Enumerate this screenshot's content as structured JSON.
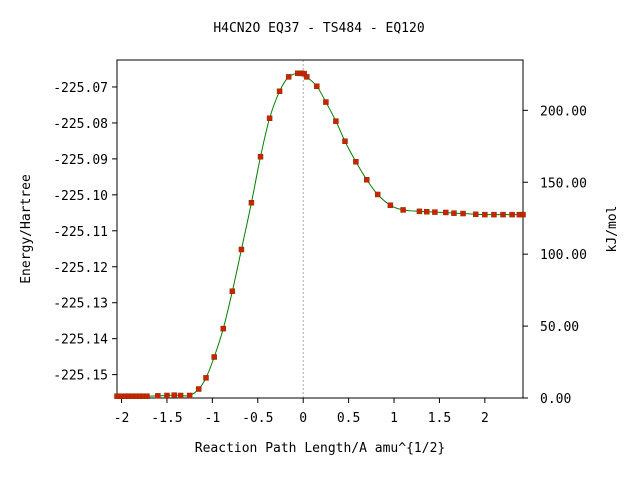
{
  "chart_data": {
    "type": "line",
    "title": "H4CN2O   EQ37 - TS484 - EQ120",
    "xlabel": "Reaction Path Length/A amu^{1/2}",
    "ylabel_left": "Energy/Hartree",
    "ylabel_right": "kJ/mol",
    "xlim": [
      -2.05,
      2.42
    ],
    "ylim_left": [
      -225.1565,
      -225.0625
    ],
    "ylim_right": [
      0,
      235
    ],
    "x_ticks": [
      -2,
      -1.5,
      -1,
      -0.5,
      0,
      0.5,
      1,
      1.5,
      2
    ],
    "x_tick_labels": [
      "-2",
      "-1.5",
      "-1",
      "-0.5",
      "0",
      "0.5",
      "1",
      "1.5",
      "2"
    ],
    "y_left_ticks": [
      -225.07,
      -225.08,
      -225.09,
      -225.1,
      -225.11,
      -225.12,
      -225.13,
      -225.14,
      -225.15
    ],
    "y_left_tick_labels": [
      "-225.07",
      "-225.08",
      "-225.09",
      "-225.10",
      "-225.11",
      "-225.12",
      "-225.13",
      "-225.14",
      "-225.15"
    ],
    "y_right_ticks": [
      0,
      50,
      100,
      150,
      200
    ],
    "y_right_tick_labels": [
      "0.00",
      "50.00",
      "100.00",
      "150.00",
      "200.00"
    ],
    "ts_marker_x": 0,
    "grid": false,
    "colors": {
      "curve": "#008000",
      "points": "#cc2200",
      "ts_line": "#aaaaaa",
      "axes": "#000000"
    },
    "series": [
      {
        "x": [
          -2.05,
          -2.0,
          -1.96,
          -1.92,
          -1.88,
          -1.84,
          -1.8,
          -1.76,
          -1.72,
          -1.6,
          -1.5,
          -1.42,
          -1.35,
          -1.25,
          -1.15,
          -1.07,
          -0.98,
          -0.88,
          -0.78,
          -0.68,
          -0.57,
          -0.47,
          -0.37,
          -0.26,
          -0.16,
          -0.06,
          -0.02,
          0.01,
          0.04,
          0.15,
          0.25,
          0.36,
          0.46,
          0.58,
          0.7,
          0.82,
          0.96,
          1.1,
          1.28,
          1.36,
          1.45,
          1.57,
          1.66,
          1.76,
          1.9,
          2.0,
          2.1,
          2.2,
          2.3,
          2.38,
          2.42
        ],
        "y": [
          -225.156,
          -225.156,
          -225.156,
          -225.156,
          -225.156,
          -225.156,
          -225.156,
          -225.156,
          -225.156,
          -225.1559,
          -225.1558,
          -225.1557,
          -225.1558,
          -225.1558,
          -225.154,
          -225.1509,
          -225.1451,
          -225.1372,
          -225.1268,
          -225.1152,
          -225.1022,
          -225.0894,
          -225.0787,
          -225.0712,
          -225.0672,
          -225.0662,
          -225.0662,
          -225.0663,
          -225.0672,
          -225.0698,
          -225.0742,
          -225.0795,
          -225.0851,
          -225.0908,
          -225.0958,
          -225.0999,
          -225.1029,
          -225.1042,
          -225.1046,
          -225.1047,
          -225.1048,
          -225.1049,
          -225.1051,
          -225.1052,
          -225.1054,
          -225.1055,
          -225.1055,
          -225.1055,
          -225.1055,
          -225.1055,
          -225.1055
        ]
      }
    ]
  }
}
